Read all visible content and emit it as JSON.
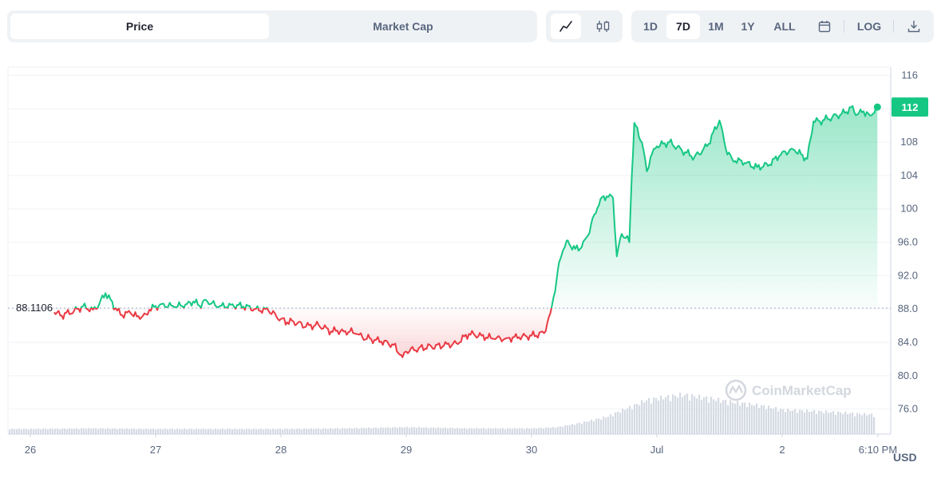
{
  "tabs": [
    {
      "label": "Price",
      "active": true
    },
    {
      "label": "Market Cap",
      "active": false
    }
  ],
  "chart_types": [
    {
      "icon": "line-chart-icon",
      "active": true
    },
    {
      "icon": "candlestick-icon",
      "active": false
    }
  ],
  "ranges": [
    {
      "label": "1D",
      "active": false
    },
    {
      "label": "7D",
      "active": true
    },
    {
      "label": "1M",
      "active": false
    },
    {
      "label": "1Y",
      "active": false
    },
    {
      "label": "ALL",
      "active": false
    }
  ],
  "tools": {
    "calendar_icon": "calendar-icon",
    "log_label": "LOG",
    "download_icon": "download-icon"
  },
  "watermark": "CoinMarketCap",
  "currency_label": "USD",
  "colors": {
    "up": "#16c784",
    "down": "#ea3943",
    "grid": "#eff2f5",
    "text_muted": "#58667e"
  },
  "chart_data": {
    "type": "area",
    "title": "",
    "xlabel": "",
    "ylabel": "",
    "x_ticks": [
      "26",
      "27",
      "28",
      "29",
      "30",
      "Jul",
      "2",
      "6:10 PM"
    ],
    "x_tick_days": [
      0,
      1,
      2,
      3,
      4,
      5,
      6,
      6.764
    ],
    "y_ticks": [
      "116",
      "112",
      "108",
      "104",
      "100",
      "96.0",
      "92.0",
      "88.0",
      "84.0",
      "80.0",
      "76.0"
    ],
    "y_tick_values": [
      116,
      112,
      108,
      104,
      100,
      96,
      92,
      88,
      84,
      80,
      76
    ],
    "ylim": [
      73,
      117
    ],
    "baseline": 88.1106,
    "baseline_label": "88.1106",
    "current_price_label": "112",
    "series": [
      {
        "x": [
          0.19,
          0.25,
          0.35,
          0.42,
          0.5,
          0.55,
          0.6,
          0.68,
          0.72,
          0.8,
          0.85,
          0.9,
          0.92,
          0.95,
          1.05,
          1.15,
          1.25,
          1.3,
          1.35,
          1.4,
          1.5,
          1.6,
          1.7,
          1.8,
          1.9,
          2.0,
          2.05,
          2.1,
          2.2,
          2.3,
          2.4,
          2.45,
          2.5,
          2.55,
          2.6,
          2.65,
          2.72,
          2.8,
          2.9,
          2.95,
          2.97,
          3.0,
          3.1,
          3.2,
          3.3,
          3.4,
          3.5,
          3.6,
          3.7,
          3.8,
          3.9,
          4.0,
          4.1,
          4.15,
          4.2,
          4.22,
          4.25,
          4.28,
          4.3,
          4.35,
          4.4,
          4.45,
          4.5,
          4.55,
          4.6,
          4.65,
          4.68,
          4.72,
          4.75,
          4.78,
          4.8,
          4.82,
          4.88,
          4.92,
          4.95,
          5.0,
          5.1,
          5.2,
          5.3,
          5.4,
          5.5,
          5.55,
          5.6,
          5.7,
          5.8,
          5.9,
          6.0,
          6.1,
          6.2,
          6.25,
          6.3,
          6.4,
          6.5,
          6.55,
          6.6,
          6.65,
          6.7,
          6.76
        ],
        "values": [
          87.6,
          87.2,
          87.8,
          88.3,
          87.9,
          88.6,
          89.9,
          88.1,
          87.3,
          87.5,
          87.1,
          87.2,
          87.4,
          87.9,
          88.6,
          88.2,
          88.6,
          88.9,
          88.4,
          89.1,
          88.2,
          88.5,
          88.3,
          88.0,
          87.8,
          86.8,
          86.4,
          86.5,
          85.9,
          86.1,
          85.3,
          85.4,
          85.3,
          85.3,
          85.0,
          84.6,
          84.4,
          84.1,
          83.7,
          82.5,
          82.2,
          82.9,
          83.3,
          83.5,
          83.6,
          83.9,
          85.0,
          84.8,
          84.4,
          84.5,
          84.6,
          84.8,
          85.1,
          87.5,
          91.5,
          93.6,
          95.0,
          96.2,
          95.8,
          95.2,
          95.4,
          96.8,
          99.3,
          101.2,
          101.5,
          101.3,
          94.3,
          97.0,
          96.5,
          96.0,
          104.0,
          110.3,
          108.0,
          104.5,
          106.2,
          107.5,
          108.0,
          107.0,
          106.2,
          107.5,
          110.6,
          107.2,
          106.0,
          105.5,
          105.0,
          105.3,
          106.8,
          107.0,
          106.0,
          110.5,
          110.5,
          111.0,
          111.5,
          112.2,
          111.3,
          111.7,
          111.2,
          112.2
        ]
      }
    ],
    "volume": {
      "x": [
        0.0,
        0.5,
        1.0,
        1.5,
        2.0,
        2.5,
        3.0,
        3.5,
        4.0,
        4.2,
        4.4,
        4.6,
        4.7,
        4.8,
        4.9,
        5.0,
        5.1,
        5.2,
        5.4,
        5.6,
        5.8,
        6.0,
        6.2,
        6.4,
        6.6,
        6.76
      ],
      "values": [
        0.09,
        0.1,
        0.09,
        0.09,
        0.09,
        0.1,
        0.12,
        0.1,
        0.1,
        0.12,
        0.2,
        0.3,
        0.4,
        0.48,
        0.58,
        0.62,
        0.65,
        0.68,
        0.62,
        0.55,
        0.5,
        0.42,
        0.4,
        0.38,
        0.35,
        0.33
      ]
    }
  }
}
